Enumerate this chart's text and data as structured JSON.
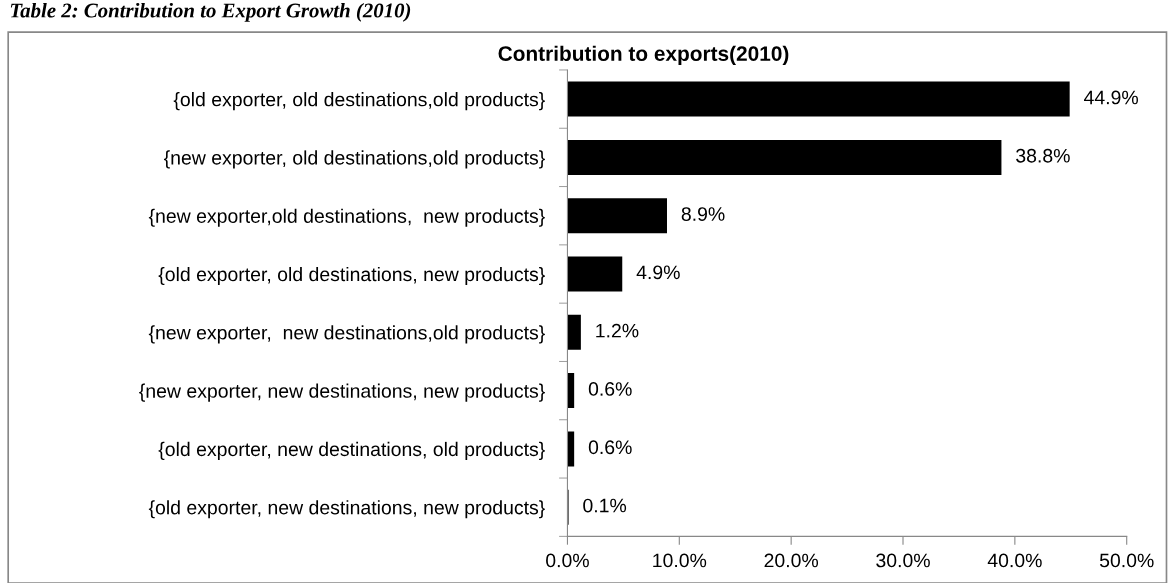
{
  "chart_data": {
    "type": "bar",
    "orientation": "horizontal",
    "title": "Contribution to exports(2010)",
    "annotations": [
      "Table 2: Contribution to Export Growth (2010)"
    ],
    "categories": [
      "{old exporter, old destinations,old products}",
      "{new exporter, old destinations,old products}",
      "{new exporter,old destinations,  new products}",
      "{old exporter, old destinations, new products}",
      "{new exporter,  new destinations,old products}",
      "{new exporter, new destinations, new products}",
      "{old exporter, new destinations, old products}",
      "{old exporter, new destinations, new products}"
    ],
    "values": [
      44.9,
      38.8,
      8.9,
      4.9,
      1.2,
      0.6,
      0.6,
      0.1
    ],
    "value_labels": [
      "44.9%",
      "38.8%",
      "8.9%",
      "4.9%",
      "1.2%",
      "0.6%",
      "0.6%",
      "0.1%"
    ],
    "color": "#000000",
    "xlim": [
      0,
      50
    ],
    "xticks": [
      {
        "value": 0,
        "label": "0.0%"
      },
      {
        "value": 10,
        "label": "10.0%"
      },
      {
        "value": 20,
        "label": "20.0%"
      },
      {
        "value": 30,
        "label": "30.0%"
      },
      {
        "value": 40,
        "label": "40.0%"
      },
      {
        "value": 50,
        "label": "50.0%"
      }
    ],
    "grid": false,
    "legend": false
  }
}
